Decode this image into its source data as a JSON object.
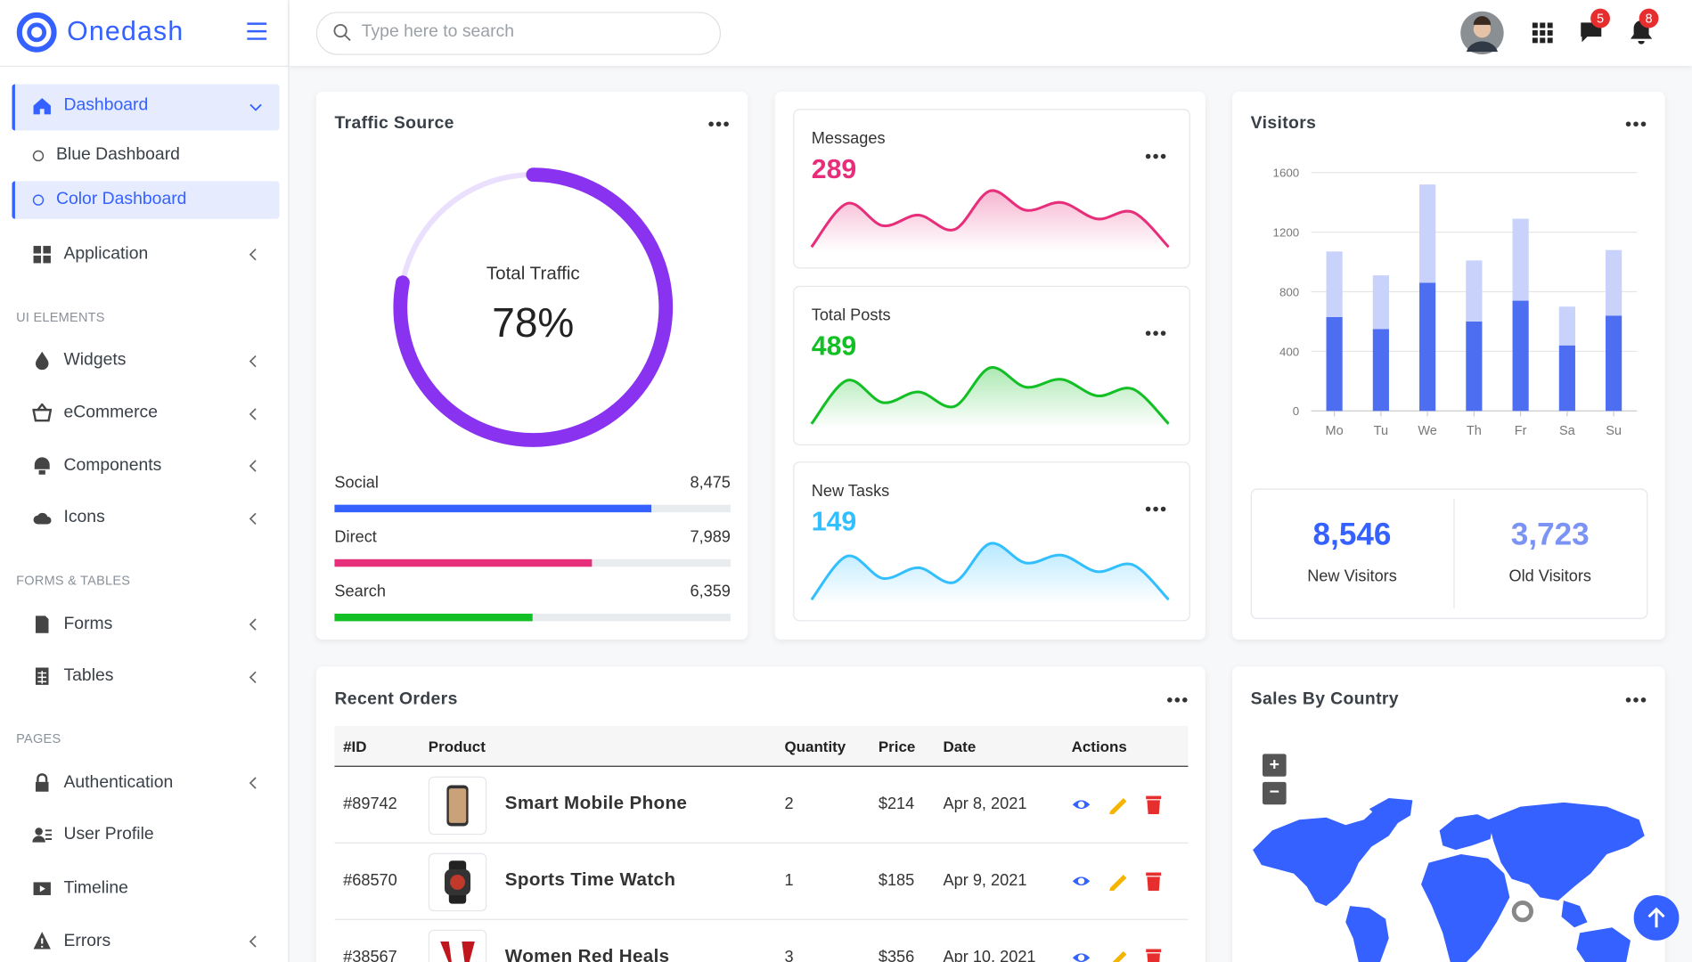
{
  "header": {
    "brand": "Onedash",
    "search_placeholder": "Type here to search",
    "message_count": 5,
    "notification_count": 8
  },
  "sidebar": {
    "dashboard": {
      "label": "Dashboard",
      "children": [
        "Blue Dashboard",
        "Color Dashboard"
      ]
    },
    "application": "Application",
    "sections": [
      {
        "title": "UI ELEMENTS",
        "items": [
          "Widgets",
          "eCommerce",
          "Components",
          "Icons"
        ]
      },
      {
        "title": "FORMS & TABLES",
        "items": [
          "Forms",
          "Tables"
        ]
      },
      {
        "title": "PAGES",
        "items": [
          "Authentication",
          "User Profile",
          "Timeline",
          "Errors"
        ]
      }
    ]
  },
  "traffic": {
    "title": "Traffic Source",
    "center_label": "Total Traffic",
    "percent": 78,
    "percent_label": "78%",
    "color": "#8932ef",
    "track_color": "#eadffc",
    "sources": [
      {
        "name": "Social",
        "value": "8,475",
        "percent": 80,
        "color": "#3461ff"
      },
      {
        "name": "Direct",
        "value": "7,989",
        "percent": 65,
        "color": "#e72e7a"
      },
      {
        "name": "Search",
        "value": "6,359",
        "percent": 50,
        "color": "#12bf24"
      }
    ]
  },
  "stats": [
    {
      "title": "Messages",
      "value": 289,
      "color": "#e72e7a",
      "values": [
        10,
        55,
        32,
        43,
        28,
        68,
        48,
        56,
        39,
        46,
        10
      ]
    },
    {
      "title": "Total Posts",
      "value": 489,
      "color": "#12bf24",
      "values": [
        10,
        55,
        32,
        43,
        28,
        68,
        48,
        56,
        39,
        46,
        10
      ]
    },
    {
      "title": "New Tasks",
      "value": 149,
      "color": "#32bfff",
      "values": [
        10,
        55,
        32,
        43,
        28,
        68,
        48,
        56,
        39,
        46,
        10
      ]
    }
  ],
  "visitors": {
    "title": "Visitors",
    "chart_data": {
      "type": "bar",
      "stacked": true,
      "categories": [
        "Mo",
        "Tu",
        "We",
        "Th",
        "Fr",
        "Sa",
        "Su"
      ],
      "series": [
        {
          "color": "#4e6ef2",
          "values": [
            630,
            550,
            860,
            600,
            740,
            440,
            640
          ]
        },
        {
          "color": "#c8d2fb",
          "values": [
            440,
            360,
            660,
            410,
            550,
            260,
            440
          ]
        }
      ],
      "ylim": [
        0,
        1600
      ],
      "yticks": [
        0,
        400,
        800,
        1200,
        1600
      ],
      "grid": true
    },
    "summary": [
      {
        "value": "8,546",
        "label": "New Visitors",
        "color": "#3461ff"
      },
      {
        "value": "3,723",
        "label": "Old Visitors",
        "color": "#7b93f5"
      }
    ]
  },
  "orders": {
    "title": "Recent Orders",
    "columns": [
      "#ID",
      "Product",
      "Quantity",
      "Price",
      "Date",
      "Actions"
    ],
    "rows": [
      [
        "#89742",
        "Smart Mobile Phone",
        "2",
        "$214",
        "Apr 8, 2021"
      ],
      [
        "#68570",
        "Sports Time Watch",
        "1",
        "$185",
        "Apr 9, 2021"
      ],
      [
        "#38567",
        "Women Red Heals",
        "3",
        "$356",
        "Apr 10, 2021"
      ]
    ]
  },
  "sales": {
    "title": "Sales By Country"
  }
}
